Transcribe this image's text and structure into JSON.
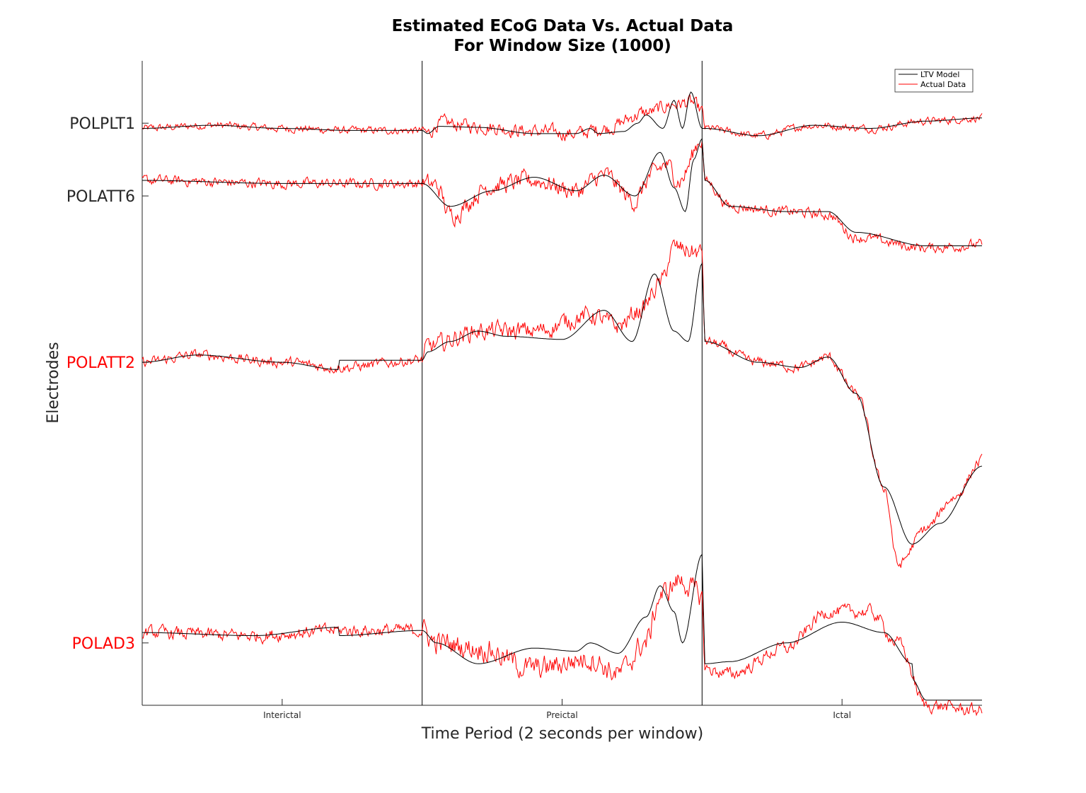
{
  "chart_data": {
    "type": "line",
    "title": [
      "Estimated ECoG Data Vs. Actual Data",
      "For Window Size (1000)"
    ],
    "xlabel": "Time Period (2 seconds per window)",
    "ylabel": "Electrodes",
    "x_tick_labels": [
      "Interictal",
      "Preictal",
      "Ictal"
    ],
    "y_tick_labels": [
      {
        "text": "POLPLT1",
        "color": "#262626"
      },
      {
        "text": "POLATT6",
        "color": "#262626"
      },
      {
        "text": "POLATT2",
        "color": "#ff0000"
      },
      {
        "text": "POLAD3",
        "color": "#ff0000"
      }
    ],
    "legend": {
      "placement": "top-right",
      "entries": [
        {
          "label": "LTV Model",
          "color": "#000000"
        },
        {
          "label": "Actual Data",
          "color": "#ff0000"
        }
      ]
    },
    "x_range": [
      0,
      3
    ],
    "period_boundaries": [
      1,
      2
    ],
    "y_range": [
      -5.6,
      0.6
    ],
    "channel_offsets": [
      0,
      -0.7,
      -2.3,
      -5.0
    ],
    "series": [
      {
        "name": "LTV Model",
        "color": "#000000",
        "channels": [
          {
            "electrode": "POLPLT1",
            "points": [
              [
                0,
                -0.05
              ],
              [
                0.25,
                -0.02
              ],
              [
                0.5,
                -0.05
              ],
              [
                0.75,
                -0.07
              ],
              [
                1,
                -0.07
              ],
              [
                1.02,
                -0.1
              ],
              [
                1.06,
                -0.03
              ],
              [
                1.2,
                -0.04
              ],
              [
                1.4,
                -0.1
              ],
              [
                1.55,
                -0.1
              ],
              [
                1.6,
                -0.05
              ],
              [
                1.63,
                -0.1
              ],
              [
                1.72,
                -0.08
              ],
              [
                1.77,
                0.0
              ],
              [
                1.8,
                0.08
              ],
              [
                1.86,
                -0.05
              ],
              [
                1.9,
                0.22
              ],
              [
                1.93,
                -0.05
              ],
              [
                1.96,
                0.3
              ],
              [
                2,
                -0.05
              ],
              [
                2.01,
                -0.05
              ],
              [
                2.2,
                -0.12
              ],
              [
                2.4,
                -0.02
              ],
              [
                2.6,
                -0.05
              ],
              [
                2.8,
                0.02
              ],
              [
                3,
                0.05
              ]
            ]
          },
          {
            "electrode": "POLATT6",
            "points": [
              [
                0,
                0.15
              ],
              [
                0.5,
                0.12
              ],
              [
                1,
                0.12
              ],
              [
                1.1,
                -0.1
              ],
              [
                1.25,
                0.05
              ],
              [
                1.4,
                0.18
              ],
              [
                1.55,
                0.05
              ],
              [
                1.65,
                0.2
              ],
              [
                1.76,
                0.0
              ],
              [
                1.85,
                0.42
              ],
              [
                1.9,
                0.08
              ],
              [
                1.94,
                -0.15
              ],
              [
                1.97,
                0.35
              ],
              [
                2,
                0.55
              ],
              [
                2.01,
                0.15
              ],
              [
                2.1,
                -0.1
              ],
              [
                2.3,
                -0.15
              ],
              [
                2.45,
                -0.15
              ],
              [
                2.55,
                -0.35
              ],
              [
                2.8,
                -0.48
              ],
              [
                3,
                -0.48
              ]
            ]
          },
          {
            "electrode": "POLATT2",
            "points": [
              [
                0,
                0.0
              ],
              [
                0.2,
                0.07
              ],
              [
                0.5,
                0.0
              ],
              [
                0.7,
                -0.07
              ],
              [
                0.7,
                0.02
              ],
              [
                1,
                0.02
              ],
              [
                1.02,
                0.1
              ],
              [
                1.1,
                0.2
              ],
              [
                1.2,
                0.3
              ],
              [
                1.3,
                0.25
              ],
              [
                1.5,
                0.22
              ],
              [
                1.65,
                0.5
              ],
              [
                1.75,
                0.2
              ],
              [
                1.83,
                0.85
              ],
              [
                1.9,
                0.3
              ],
              [
                1.95,
                0.2
              ],
              [
                2,
                0.95
              ],
              [
                2.01,
                0.2
              ],
              [
                2.2,
                0.0
              ],
              [
                2.35,
                -0.05
              ],
              [
                2.45,
                0.05
              ],
              [
                2.55,
                -0.3
              ],
              [
                2.65,
                -1.2
              ],
              [
                2.75,
                -1.75
              ],
              [
                2.85,
                -1.55
              ],
              [
                3,
                -1.0
              ]
            ]
          },
          {
            "electrode": "POLAD3",
            "points": [
              [
                0,
                0.1
              ],
              [
                0.4,
                0.07
              ],
              [
                0.7,
                0.15
              ],
              [
                0.7,
                0.07
              ],
              [
                1,
                0.12
              ],
              [
                1.05,
                0.0
              ],
              [
                1.2,
                -0.2
              ],
              [
                1.4,
                -0.05
              ],
              [
                1.55,
                -0.08
              ],
              [
                1.6,
                0.0
              ],
              [
                1.7,
                -0.1
              ],
              [
                1.8,
                0.25
              ],
              [
                1.85,
                0.55
              ],
              [
                1.9,
                0.3
              ],
              [
                1.93,
                0.0
              ],
              [
                2,
                0.85
              ],
              [
                2.01,
                -0.2
              ],
              [
                2.1,
                -0.18
              ],
              [
                2.3,
                0.0
              ],
              [
                2.5,
                0.2
              ],
              [
                2.65,
                0.1
              ],
              [
                2.75,
                -0.2
              ],
              [
                2.75,
                -0.35
              ],
              [
                2.8,
                -0.55
              ],
              [
                3,
                -0.55
              ]
            ]
          }
        ]
      },
      {
        "name": "Actual Data",
        "color": "#ff0000",
        "channels": [
          {
            "electrode": "POLPLT1",
            "noise": 0.03,
            "points": [
              [
                0,
                -0.05
              ],
              [
                0.25,
                -0.02
              ],
              [
                0.5,
                -0.05
              ],
              [
                0.75,
                -0.07
              ],
              [
                1,
                -0.07
              ],
              [
                1.02,
                -0.1
              ],
              [
                1.06,
                0.0
              ],
              [
                1.2,
                -0.03
              ],
              [
                1.4,
                -0.08
              ],
              [
                1.55,
                -0.1
              ],
              [
                1.65,
                -0.05
              ],
              [
                1.8,
                0.1
              ],
              [
                1.9,
                0.18
              ],
              [
                1.96,
                0.2
              ],
              [
                2,
                0.12
              ],
              [
                2.01,
                -0.05
              ],
              [
                2.2,
                -0.12
              ],
              [
                2.4,
                -0.02
              ],
              [
                2.6,
                -0.05
              ],
              [
                2.8,
                0.02
              ],
              [
                3,
                0.05
              ]
            ]
          },
          {
            "electrode": "POLATT6",
            "noise": 0.04,
            "points": [
              [
                0,
                0.15
              ],
              [
                0.5,
                0.12
              ],
              [
                1,
                0.12
              ],
              [
                1.05,
                0.1
              ],
              [
                1.1,
                -0.18
              ],
              [
                1.25,
                0.1
              ],
              [
                1.4,
                0.15
              ],
              [
                1.55,
                0.05
              ],
              [
                1.65,
                0.2
              ],
              [
                1.76,
                -0.05
              ],
              [
                1.82,
                0.2
              ],
              [
                1.87,
                0.3
              ],
              [
                1.92,
                0.15
              ],
              [
                2,
                0.55
              ],
              [
                2.01,
                0.15
              ],
              [
                2.1,
                -0.1
              ],
              [
                2.3,
                -0.15
              ],
              [
                2.45,
                -0.18
              ],
              [
                2.55,
                -0.4
              ],
              [
                2.8,
                -0.5
              ],
              [
                3,
                -0.47
              ]
            ]
          },
          {
            "electrode": "POLATT2",
            "noise": 0.04,
            "points": [
              [
                0,
                0.0
              ],
              [
                0.2,
                0.07
              ],
              [
                0.5,
                0.0
              ],
              [
                0.7,
                -0.05
              ],
              [
                1,
                0.02
              ],
              [
                1.02,
                0.15
              ],
              [
                1.2,
                0.3
              ],
              [
                1.4,
                0.3
              ],
              [
                1.6,
                0.45
              ],
              [
                1.7,
                0.35
              ],
              [
                1.78,
                0.5
              ],
              [
                1.85,
                0.75
              ],
              [
                1.9,
                1.1
              ],
              [
                2,
                1.05
              ],
              [
                2.01,
                0.2
              ],
              [
                2.2,
                0.0
              ],
              [
                2.35,
                -0.05
              ],
              [
                2.45,
                0.05
              ],
              [
                2.55,
                -0.3
              ],
              [
                2.65,
                -1.2
              ],
              [
                2.7,
                -1.95
              ],
              [
                2.8,
                -1.6
              ],
              [
                2.9,
                -1.3
              ],
              [
                3,
                -0.95
              ]
            ]
          },
          {
            "electrode": "POLAD3",
            "noise": 0.05,
            "points": [
              [
                0,
                0.1
              ],
              [
                0.4,
                0.07
              ],
              [
                0.7,
                0.12
              ],
              [
                1,
                0.12
              ],
              [
                1.05,
                0.0
              ],
              [
                1.2,
                -0.05
              ],
              [
                1.4,
                -0.25
              ],
              [
                1.6,
                -0.15
              ],
              [
                1.7,
                -0.3
              ],
              [
                1.8,
                0.0
              ],
              [
                1.85,
                0.45
              ],
              [
                1.92,
                0.6
              ],
              [
                2,
                0.45
              ],
              [
                2.01,
                -0.25
              ],
              [
                2.1,
                -0.3
              ],
              [
                2.3,
                -0.05
              ],
              [
                2.45,
                0.3
              ],
              [
                2.6,
                0.3
              ],
              [
                2.7,
                0.0
              ],
              [
                2.8,
                -0.6
              ],
              [
                3,
                -0.65
              ]
            ]
          }
        ]
      }
    ]
  }
}
